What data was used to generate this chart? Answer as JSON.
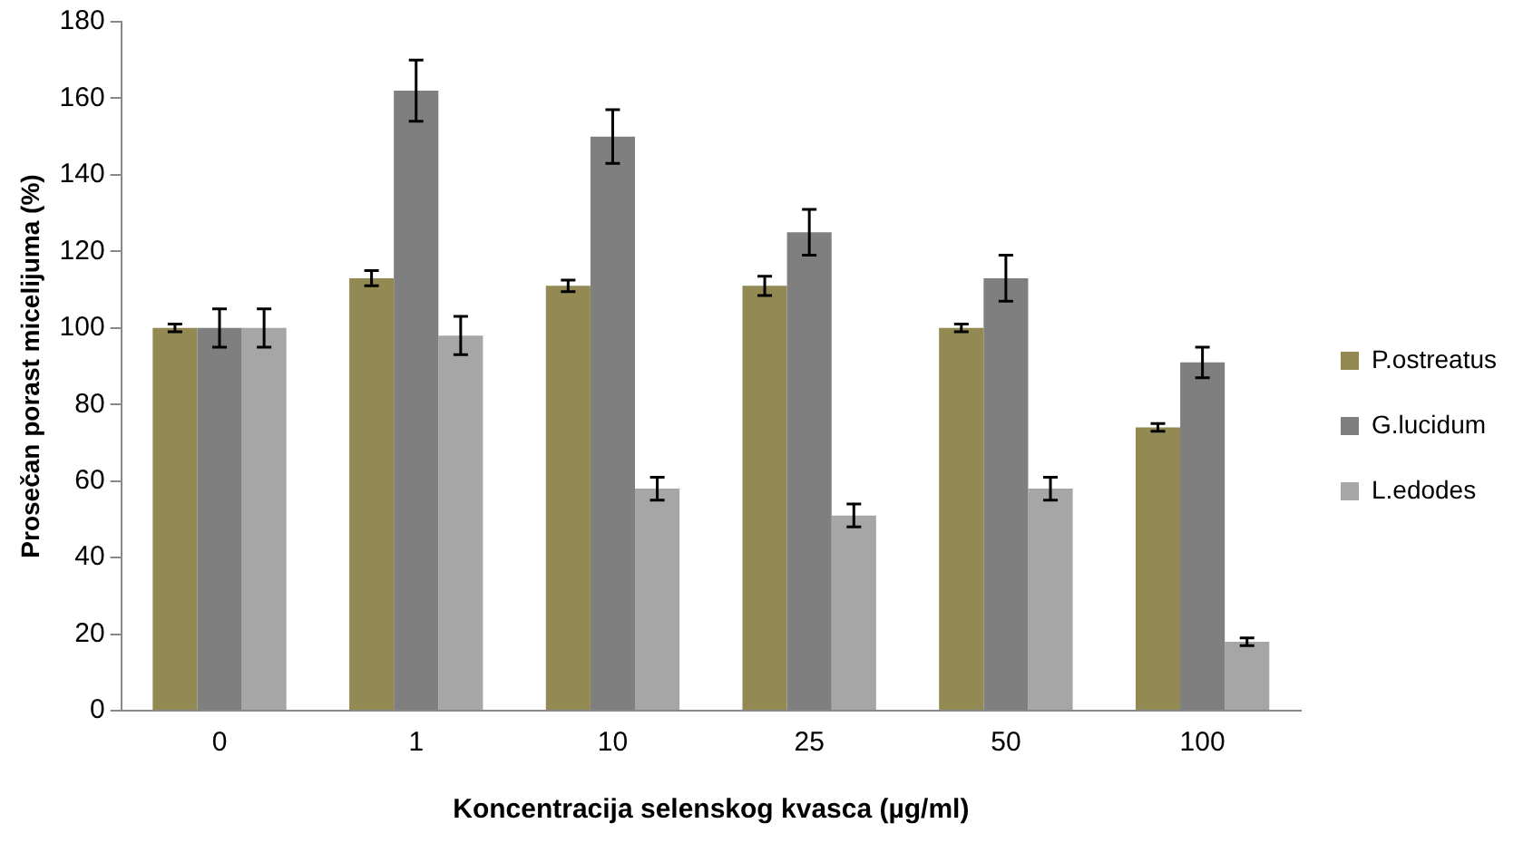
{
  "chart_data": {
    "type": "bar",
    "xlabel": "Koncentracija selenskog kvasca (µg/ml)",
    "ylabel": "Prosečan porast micelijuma (%)",
    "categories": [
      "0",
      "1",
      "10",
      "25",
      "50",
      "100"
    ],
    "series": [
      {
        "name": "P.ostreatus",
        "color": "#938953",
        "values": [
          100,
          113,
          111,
          111,
          100,
          74
        ],
        "errors": [
          1,
          2,
          1.5,
          2.5,
          1,
          1
        ]
      },
      {
        "name": "G.lucidum",
        "color": "#7f7f7f",
        "values": [
          100,
          162,
          150,
          125,
          113,
          91
        ],
        "errors": [
          5,
          8,
          7,
          6,
          6,
          4
        ]
      },
      {
        "name": "L.edodes",
        "color": "#a6a6a6",
        "values": [
          100,
          98,
          58,
          51,
          58,
          18
        ],
        "errors": [
          5,
          5,
          3,
          3,
          3,
          1
        ]
      }
    ],
    "ylim": [
      0,
      180
    ],
    "yticks": [
      0,
      20,
      40,
      60,
      80,
      100,
      120,
      140,
      160,
      180
    ],
    "grid": false,
    "legend": "right"
  }
}
